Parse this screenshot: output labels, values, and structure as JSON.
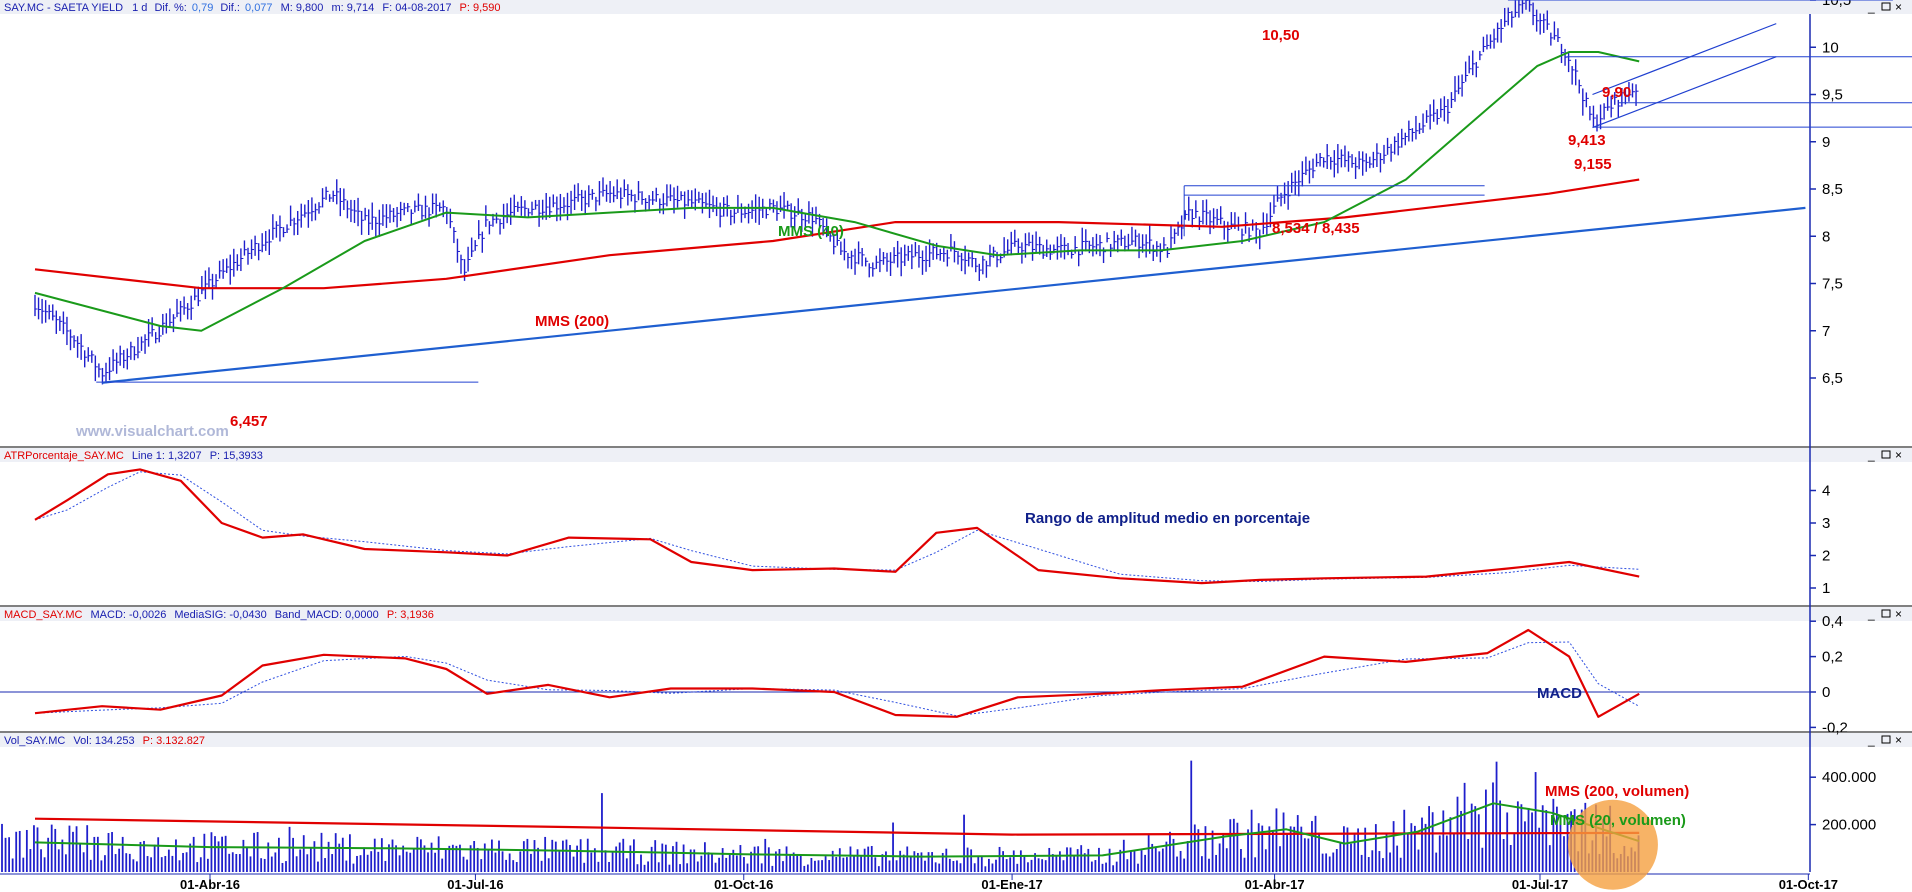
{
  "colors": {
    "price_bars": "#1f1fcc",
    "mms40": "#1a9a1a",
    "mms200": "#e00000",
    "trendline": "#1f5fd0",
    "hline": "#2040d0",
    "atr": "#e00000",
    "atr_signal": "#3050e0",
    "annotation_red": "#e00000",
    "annotation_green": "#1a9a1a",
    "annotation_blue": "#10208a",
    "volume_highlight": "#f5a040"
  },
  "header": {
    "symbol": "SAY.MC - SAETA YIELD",
    "timeframe": "1 d",
    "dif_pct_label": "Dif. %:",
    "dif_pct_value": "0,79",
    "dif_label": "Dif.:",
    "dif_value": "0,077",
    "max_label": "M: 9,800",
    "min_label": "m: 9,714",
    "date_label": "F: 04-08-2017",
    "price_label": "P: 9,590"
  },
  "panels": {
    "atr": {
      "header_name": "ATRPorcentaje_SAY.MC",
      "header_line": "Line 1: 1,3207",
      "header_p": "P: 15,3933",
      "title": "Rango de amplitud medio en porcentaje"
    },
    "macd": {
      "header_name": "MACD_SAY.MC",
      "header_macd": "MACD: -0,0026",
      "header_sig": "MediaSIG: -0,0430",
      "header_band": "Band_MACD: 0,0000",
      "header_p": "P: 3,1936",
      "title": "MACD"
    },
    "volume": {
      "header_name": "Vol_SAY.MC",
      "header_vol": "Vol: 134.253",
      "header_p": "P: 3.132.827",
      "label_mms200": "MMS (200, volumen)",
      "label_mms20": "MMS (20, volumen)"
    }
  },
  "annotations": {
    "mms40": "MMS (40)",
    "mms200": "MMS (200)",
    "level_1050": "10,50",
    "level_990": "9,90",
    "level_9413": "9,413",
    "level_9155": "9,155",
    "level_8534": "8,534 / 8,435",
    "level_6457": "6,457",
    "watermark": "www.visualchart.com"
  },
  "chart_data": [
    {
      "type": "ohlc",
      "title": "SAY.MC - SAETA YIELD",
      "y_ticks": [
        "6,5",
        "7",
        "7,5",
        "8",
        "8,5",
        "9",
        "9,5",
        "10",
        "10,5"
      ],
      "ylim": [
        6.2,
        10.8
      ],
      "x_ticks": [
        "01-Abr-16",
        "01-Jul-16",
        "01-Oct-16",
        "01-Ene-17",
        "01-Abr-17",
        "01-Jul-17",
        "01-Oct-17"
      ],
      "price_path": [
        [
          "2016-02-01",
          7.3
        ],
        [
          "2016-02-15",
          6.9
        ],
        [
          "2016-02-24",
          6.55
        ],
        [
          "2016-03-08",
          6.85
        ],
        [
          "2016-03-22",
          7.2
        ],
        [
          "2016-04-05",
          7.6
        ],
        [
          "2016-04-19",
          7.95
        ],
        [
          "2016-05-03",
          8.25
        ],
        [
          "2016-05-13",
          8.45
        ],
        [
          "2016-05-24",
          8.15
        ],
        [
          "2016-06-07",
          8.25
        ],
        [
          "2016-06-21",
          8.3
        ],
        [
          "2016-06-27",
          7.6
        ],
        [
          "2016-07-05",
          8.15
        ],
        [
          "2016-07-19",
          8.3
        ],
        [
          "2016-08-02",
          8.35
        ],
        [
          "2016-08-16",
          8.45
        ],
        [
          "2016-08-30",
          8.4
        ],
        [
          "2016-09-13",
          8.35
        ],
        [
          "2016-09-27",
          8.25
        ],
        [
          "2016-10-11",
          8.3
        ],
        [
          "2016-10-25",
          8.2
        ],
        [
          "2016-11-03",
          7.85
        ],
        [
          "2016-11-15",
          7.7
        ],
        [
          "2016-11-29",
          7.8
        ],
        [
          "2016-12-13",
          7.85
        ],
        [
          "2016-12-20",
          7.7
        ],
        [
          "2017-01-03",
          7.9
        ],
        [
          "2017-01-17",
          7.85
        ],
        [
          "2017-01-31",
          7.9
        ],
        [
          "2017-02-14",
          7.95
        ],
        [
          "2017-02-23",
          7.85
        ],
        [
          "2017-03-03",
          8.25
        ],
        [
          "2017-03-17",
          8.1
        ],
        [
          "2017-03-27",
          8.05
        ],
        [
          "2017-04-04",
          8.45
        ],
        [
          "2017-04-18",
          8.85
        ],
        [
          "2017-05-02",
          8.75
        ],
        [
          "2017-05-16",
          9.05
        ],
        [
          "2017-05-30",
          9.35
        ],
        [
          "2017-06-09",
          9.85
        ],
        [
          "2017-06-20",
          10.3
        ],
        [
          "2017-06-26",
          10.45
        ],
        [
          "2017-07-03",
          10.2
        ],
        [
          "2017-07-10",
          9.95
        ],
        [
          "2017-07-14",
          9.65
        ],
        [
          "2017-07-19",
          9.2
        ],
        [
          "2017-07-28",
          9.45
        ],
        [
          "2017-08-04",
          9.6
        ]
      ],
      "series": [
        {
          "name": "MMS (40)",
          "points": [
            [
              "2016-02-01",
              7.4
            ],
            [
              "2016-03-15",
              7.05
            ],
            [
              "2016-03-29",
              7.0
            ],
            [
              "2016-04-26",
              7.45
            ],
            [
              "2016-05-24",
              7.95
            ],
            [
              "2016-06-21",
              8.25
            ],
            [
              "2016-07-19",
              8.2
            ],
            [
              "2016-08-16",
              8.25
            ],
            [
              "2016-09-13",
              8.3
            ],
            [
              "2016-10-11",
              8.3
            ],
            [
              "2016-11-08",
              8.15
            ],
            [
              "2016-12-06",
              7.9
            ],
            [
              "2016-12-27",
              7.8
            ],
            [
              "2017-01-24",
              7.85
            ],
            [
              "2017-02-21",
              7.85
            ],
            [
              "2017-03-21",
              7.95
            ],
            [
              "2017-04-18",
              8.15
            ],
            [
              "2017-05-16",
              8.6
            ],
            [
              "2017-06-13",
              9.35
            ],
            [
              "2017-06-30",
              9.8
            ],
            [
              "2017-07-11",
              9.95
            ],
            [
              "2017-07-21",
              9.95
            ],
            [
              "2017-08-04",
              9.85
            ]
          ]
        },
        {
          "name": "MMS (200)",
          "points": [
            [
              "2016-02-01",
              7.65
            ],
            [
              "2016-03-29",
              7.45
            ],
            [
              "2016-05-10",
              7.45
            ],
            [
              "2016-06-21",
              7.55
            ],
            [
              "2016-08-16",
              7.8
            ],
            [
              "2016-10-11",
              7.95
            ],
            [
              "2016-11-22",
              8.15
            ],
            [
              "2017-01-17",
              8.15
            ],
            [
              "2017-03-14",
              8.1
            ],
            [
              "2017-04-25",
              8.2
            ],
            [
              "2017-06-06",
              8.35
            ],
            [
              "2017-07-04",
              8.45
            ],
            [
              "2017-08-04",
              8.6
            ]
          ]
        }
      ],
      "trendline": [
        [
          "2016-02-24",
          6.45
        ],
        [
          "2017-09-30",
          8.3
        ]
      ],
      "levels": [
        10.5,
        9.9,
        9.413,
        9.155,
        8.534,
        8.435,
        6.457
      ]
    },
    {
      "type": "line",
      "title": "Rango de amplitud medio en porcentaje",
      "y_ticks": [
        "1",
        "2",
        "3",
        "4"
      ],
      "ylim": [
        0.5,
        4.9
      ],
      "series": [
        {
          "name": "ATRPorcentaje_SAY.MC",
          "points": [
            [
              "2016-02-01",
              3.1
            ],
            [
              "2016-02-12",
              3.7
            ],
            [
              "2016-02-26",
              4.5
            ],
            [
              "2016-03-08",
              4.65
            ],
            [
              "2016-03-22",
              4.3
            ],
            [
              "2016-04-05",
              3.0
            ],
            [
              "2016-04-19",
              2.55
            ],
            [
              "2016-05-03",
              2.65
            ],
            [
              "2016-05-24",
              2.2
            ],
            [
              "2016-06-21",
              2.1
            ],
            [
              "2016-07-12",
              2.0
            ],
            [
              "2016-08-02",
              2.55
            ],
            [
              "2016-08-30",
              2.5
            ],
            [
              "2016-09-13",
              1.8
            ],
            [
              "2016-10-04",
              1.55
            ],
            [
              "2016-11-01",
              1.6
            ],
            [
              "2016-11-22",
              1.5
            ],
            [
              "2016-12-06",
              2.7
            ],
            [
              "2016-12-20",
              2.85
            ],
            [
              "2017-01-10",
              1.55
            ],
            [
              "2017-02-07",
              1.3
            ],
            [
              "2017-03-07",
              1.15
            ],
            [
              "2017-03-27",
              1.25
            ],
            [
              "2017-04-18",
              1.3
            ],
            [
              "2017-05-23",
              1.35
            ],
            [
              "2017-06-20",
              1.6
            ],
            [
              "2017-07-11",
              1.8
            ],
            [
              "2017-08-04",
              1.35
            ]
          ]
        }
      ]
    },
    {
      "type": "line",
      "title": "MACD",
      "y_ticks": [
        "-0,2",
        "0",
        "0,2",
        "0,4"
      ],
      "ylim": [
        -0.25,
        0.42
      ],
      "series": [
        {
          "name": "MACD",
          "points": [
            [
              "2016-02-01",
              -0.12
            ],
            [
              "2016-02-24",
              -0.08
            ],
            [
              "2016-03-15",
              -0.1
            ],
            [
              "2016-04-05",
              -0.02
            ],
            [
              "2016-04-19",
              0.15
            ],
            [
              "2016-05-10",
              0.21
            ],
            [
              "2016-06-07",
              0.19
            ],
            [
              "2016-06-21",
              0.13
            ],
            [
              "2016-07-05",
              -0.01
            ],
            [
              "2016-07-26",
              0.04
            ],
            [
              "2016-08-16",
              -0.03
            ],
            [
              "2016-09-06",
              0.02
            ],
            [
              "2016-10-04",
              0.02
            ],
            [
              "2016-11-01",
              0.0
            ],
            [
              "2016-11-22",
              -0.13
            ],
            [
              "2016-12-13",
              -0.14
            ],
            [
              "2017-01-03",
              -0.03
            ],
            [
              "2017-01-31",
              -0.01
            ],
            [
              "2017-02-21",
              0.01
            ],
            [
              "2017-03-21",
              0.03
            ],
            [
              "2017-04-18",
              0.2
            ],
            [
              "2017-05-16",
              0.17
            ],
            [
              "2017-06-13",
              0.22
            ],
            [
              "2017-06-27",
              0.35
            ],
            [
              "2017-07-11",
              0.2
            ],
            [
              "2017-07-21",
              -0.14
            ],
            [
              "2017-08-04",
              -0.01
            ]
          ]
        }
      ]
    },
    {
      "type": "bar",
      "title": "Vol_SAY.MC",
      "y_ticks": [
        "200.000",
        "400.000"
      ],
      "ylim": [
        0,
        480000
      ],
      "series": [
        {
          "name": "MMS (200, volumen)",
          "points": [
            [
              "2016-02-01",
              225000
            ],
            [
              "2016-08-01",
              190000
            ],
            [
              "2017-01-01",
              158000
            ],
            [
              "2017-05-01",
              162000
            ],
            [
              "2017-08-04",
              165000
            ]
          ]
        },
        {
          "name": "MMS (20, volumen)",
          "points": [
            [
              "2016-02-01",
              125000
            ],
            [
              "2016-04-01",
              105000
            ],
            [
              "2016-06-01",
              100000
            ],
            [
              "2016-08-01",
              90000
            ],
            [
              "2016-10-01",
              75000
            ],
            [
              "2016-12-01",
              65000
            ],
            [
              "2017-02-01",
              70000
            ],
            [
              "2017-03-15",
              150000
            ],
            [
              "2017-04-05",
              180000
            ],
            [
              "2017-04-25",
              120000
            ],
            [
              "2017-05-20",
              170000
            ],
            [
              "2017-06-15",
              290000
            ],
            [
              "2017-07-05",
              250000
            ],
            [
              "2017-08-04",
              130000
            ]
          ]
        }
      ]
    }
  ]
}
